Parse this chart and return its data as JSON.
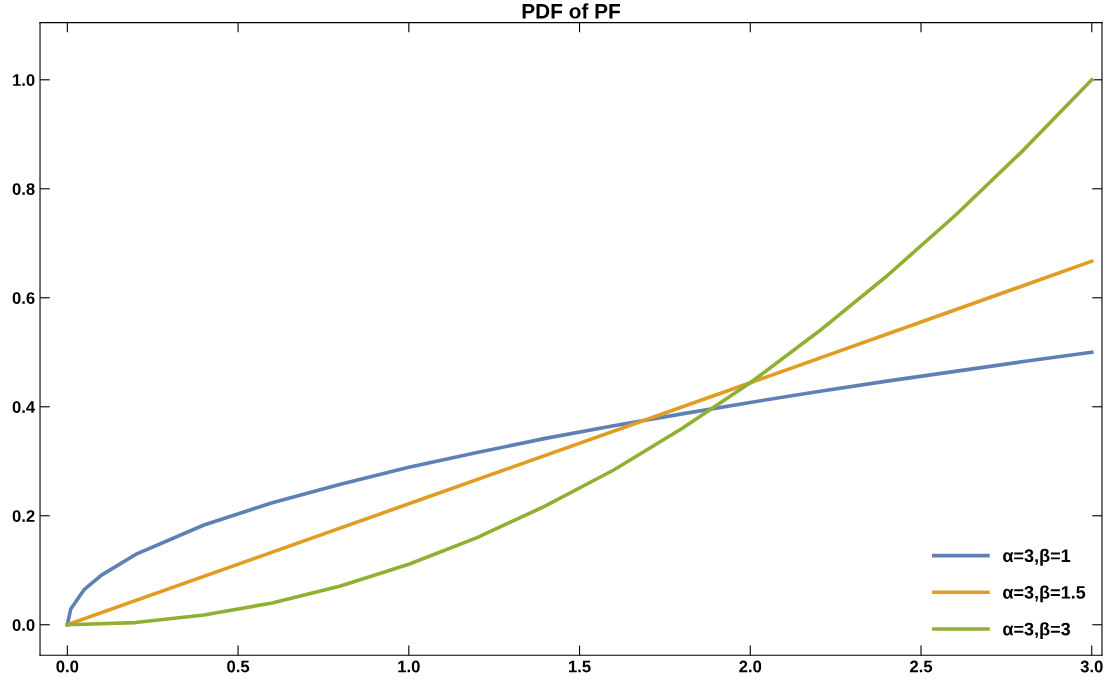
{
  "chart_data": {
    "type": "line",
    "title": "PDF of PF",
    "series": [
      {
        "name": "α=3,β=1",
        "color": "#5e81b5",
        "x": [
          0,
          0.01,
          0.05,
          0.1,
          0.2,
          0.4,
          0.6,
          0.8,
          1.0,
          1.2,
          1.4,
          1.6,
          1.8,
          2.0,
          2.2,
          2.4,
          2.6,
          2.8,
          3.0
        ],
        "values": [
          0,
          0.029,
          0.065,
          0.091,
          0.129,
          0.183,
          0.224,
          0.258,
          0.289,
          0.316,
          0.342,
          0.365,
          0.387,
          0.408,
          0.428,
          0.447,
          0.465,
          0.483,
          0.5
        ]
      },
      {
        "name": "α=3,β=1.5",
        "color": "#e19c24",
        "x": [
          0,
          1.0,
          2.0,
          3.0
        ],
        "values": [
          0,
          0.222,
          0.444,
          0.667
        ]
      },
      {
        "name": "α=3,β=3",
        "color": "#8fb032",
        "x": [
          0,
          0.2,
          0.4,
          0.6,
          0.8,
          1.0,
          1.2,
          1.4,
          1.6,
          1.8,
          2.0,
          2.2,
          2.4,
          2.6,
          2.8,
          3.0
        ],
        "values": [
          0,
          0.004,
          0.018,
          0.04,
          0.071,
          0.111,
          0.16,
          0.218,
          0.284,
          0.36,
          0.444,
          0.538,
          0.64,
          0.751,
          0.871,
          1.0
        ]
      }
    ],
    "xlim": [
      -0.08,
      3.03
    ],
    "ylim": [
      -0.056,
      1.105
    ],
    "xticks": [
      {
        "value": 0,
        "label": "0.0"
      },
      0.5,
      {
        "value": 1,
        "label": "1.0"
      },
      1.5,
      {
        "value": 2,
        "label": "2.0"
      },
      2.5,
      {
        "value": 3,
        "label": "3.0"
      }
    ],
    "yticks": [
      {
        "value": 0,
        "label": "0.0"
      },
      0.2,
      0.4,
      0.6,
      0.8,
      {
        "value": 1,
        "label": "1.0"
      }
    ],
    "grid": false,
    "legend": "bottom right",
    "marker": "none",
    "line_style": "solid"
  }
}
